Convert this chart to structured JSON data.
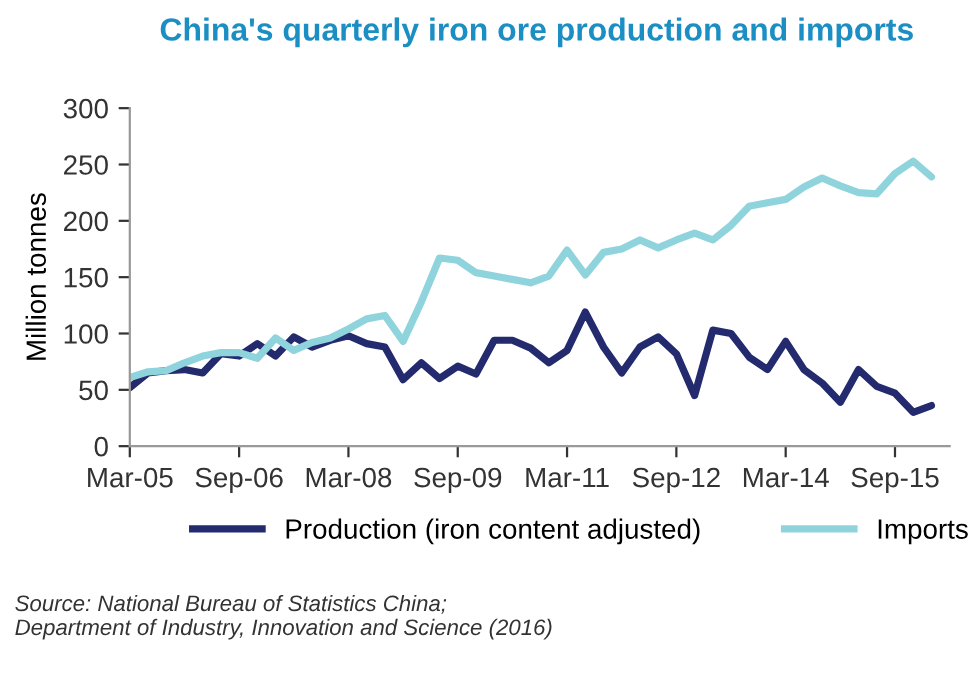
{
  "chart_data": {
    "type": "line",
    "title": "China's quarterly iron ore production and imports",
    "ylabel": "Million tonnes",
    "categories": [
      "Mar-05",
      null,
      null,
      null,
      null,
      null,
      "Sep-06",
      null,
      null,
      null,
      null,
      null,
      "Mar-08",
      null,
      null,
      null,
      null,
      null,
      "Sep-09",
      null,
      null,
      null,
      null,
      null,
      "Mar-11",
      null,
      null,
      null,
      null,
      null,
      "Sep-12",
      null,
      null,
      null,
      null,
      null,
      "Mar-14",
      null,
      null,
      null,
      null,
      null,
      "Sep-15",
      null,
      null
    ],
    "series": [
      {
        "name": "Production (iron content adjusted)",
        "color": "#232a6e",
        "values": [
          52,
          65,
          67,
          68,
          65,
          82,
          80,
          91,
          80,
          97,
          88,
          94,
          98,
          91,
          88,
          59,
          74,
          60,
          71,
          64,
          94,
          94,
          87,
          74,
          85,
          119,
          88,
          65,
          88,
          97,
          82,
          45,
          103,
          100,
          79,
          68,
          93,
          68,
          56,
          39,
          68,
          53,
          47,
          30,
          36
        ]
      },
      {
        "name": "Imports",
        "color": "#8fd4dd",
        "values": [
          61,
          66,
          67,
          74,
          80,
          83,
          83,
          78,
          96,
          85,
          92,
          96,
          104,
          113,
          116,
          93,
          128,
          167,
          165,
          154,
          151,
          148,
          145,
          151,
          174,
          152,
          172,
          175,
          183,
          176,
          183,
          189,
          183,
          196,
          213,
          216,
          219,
          230,
          238,
          231,
          225,
          224,
          242,
          253,
          239
        ]
      }
    ],
    "ylim": [
      0,
      300
    ],
    "yticks": [
      0,
      50,
      100,
      150,
      200,
      250,
      300
    ],
    "grid": false,
    "legend": "bottom",
    "line_style": "solid",
    "marker": "none",
    "annotations": [
      "Source: National Bureau of Statistics China;\nDepartment of Industry, Innovation and Science (2016)"
    ]
  }
}
